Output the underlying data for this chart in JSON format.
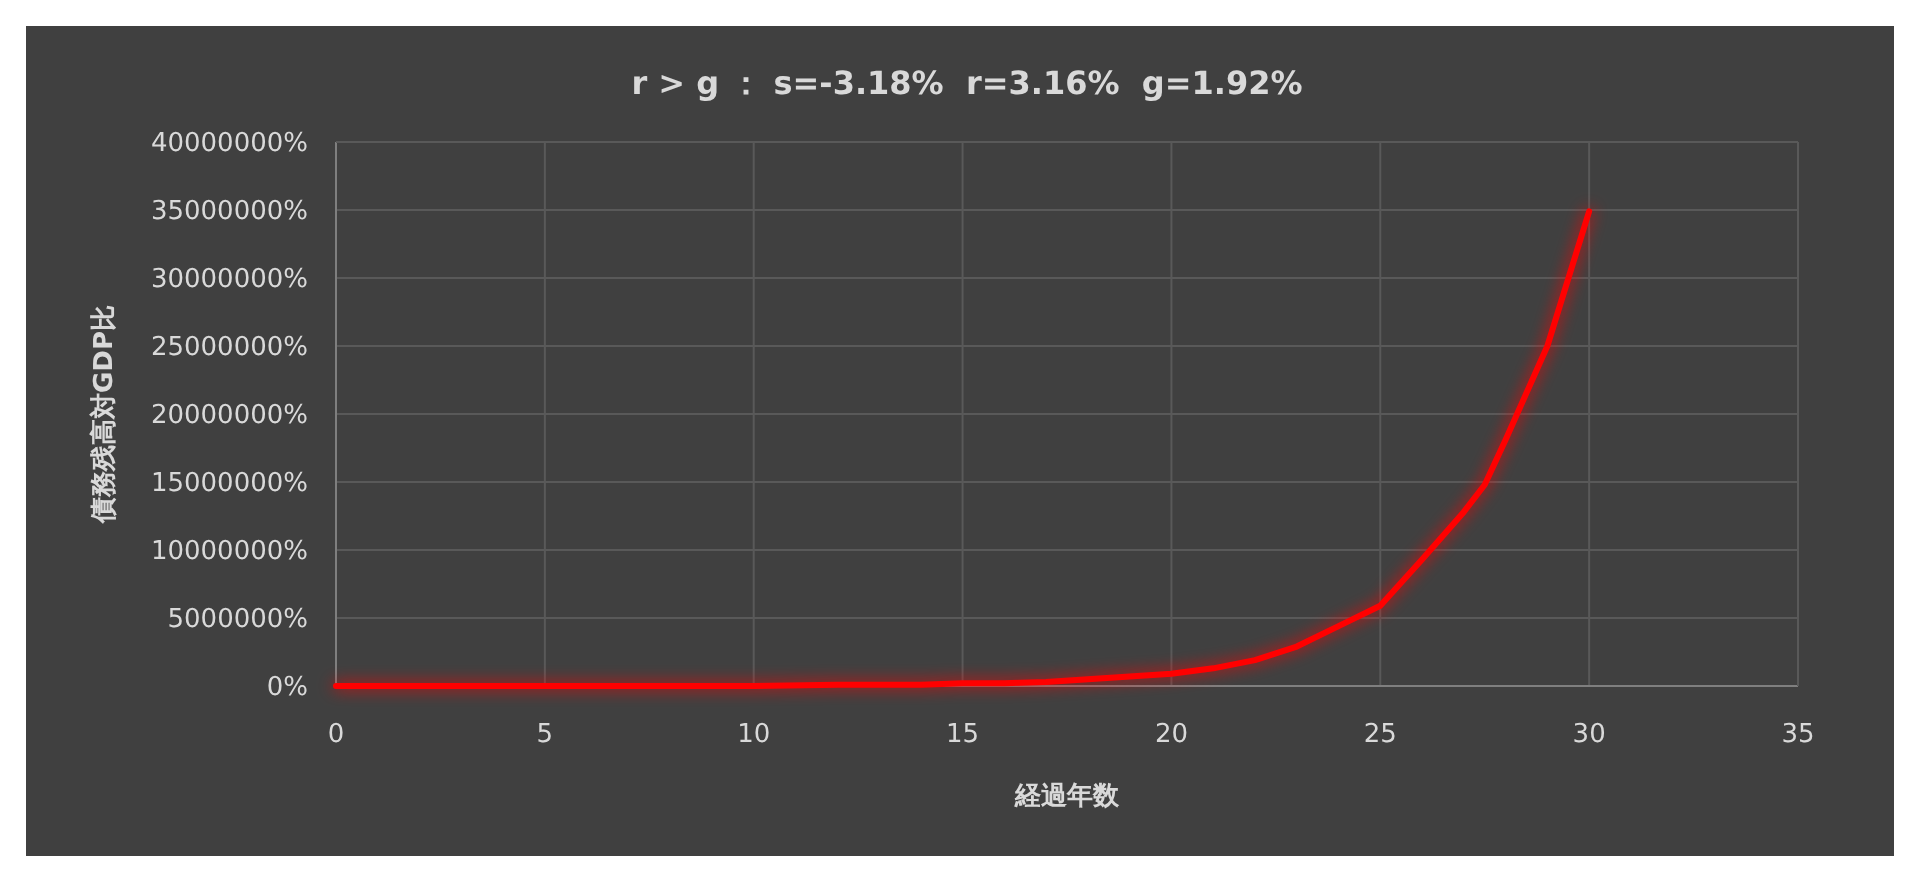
{
  "chart_data": {
    "type": "line",
    "title": "r > g ： s=-3.18%  r=3.16%  g=1.92%",
    "xlabel": "経過年数",
    "ylabel": "債務残高対GDP比",
    "x": [
      0,
      5,
      10,
      12,
      14,
      15,
      16,
      17,
      18,
      19,
      20,
      21,
      22,
      22.5,
      23,
      24,
      25,
      26,
      27,
      27.5,
      28,
      29,
      30
    ],
    "series": [
      {
        "color": "#ff0000",
        "values": [
          0,
          0,
          0,
          100000,
          100000,
          200000,
          200000,
          300000,
          500000,
          700000,
          900000,
          1300000,
          1900000,
          2400000,
          2900000,
          4400000,
          5900000,
          9300000,
          12800000,
          14800000,
          18100000,
          25000000,
          34900000
        ]
      }
    ],
    "xlim": [
      0,
      35
    ],
    "xticks": [
      0,
      5,
      10,
      15,
      20,
      25,
      30,
      35
    ],
    "ylim": [
      0,
      40000000
    ],
    "yticks": [
      {
        "value": 0,
        "label": "0%"
      },
      {
        "value": 5000000,
        "label": "5000000%"
      },
      {
        "value": 10000000,
        "label": "10000000%"
      },
      {
        "value": 15000000,
        "label": "15000000%"
      },
      {
        "value": 20000000,
        "label": "20000000%"
      },
      {
        "value": 25000000,
        "label": "25000000%"
      },
      {
        "value": 30000000,
        "label": "30000000%"
      },
      {
        "value": 35000000,
        "label": "35000000%"
      },
      {
        "value": 40000000,
        "label": "40000000%"
      }
    ],
    "grid": true
  }
}
